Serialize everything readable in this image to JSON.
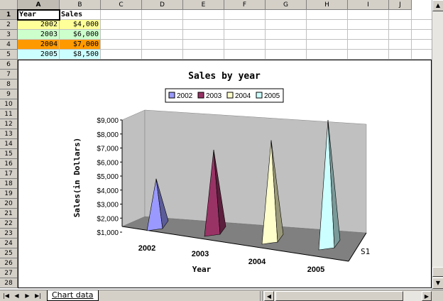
{
  "columns": [
    "A",
    "B",
    "C",
    "D",
    "E",
    "F",
    "G",
    "H",
    "I",
    "J"
  ],
  "rows": [
    "1",
    "2",
    "3",
    "4",
    "5",
    "6",
    "7",
    "8",
    "9",
    "10",
    "11",
    "12",
    "13",
    "14",
    "15",
    "16",
    "17",
    "18",
    "19",
    "20",
    "21",
    "22",
    "23",
    "24",
    "25",
    "26",
    "27",
    "28"
  ],
  "table": {
    "headers": [
      "Year",
      "Sales"
    ],
    "rows": [
      {
        "year": "2002",
        "sales": "$4,000",
        "fill": "#ffff99"
      },
      {
        "year": "2003",
        "sales": "$6,000",
        "fill": "#ccffcc"
      },
      {
        "year": "2004",
        "sales": "$7,000",
        "fill": "#ff9900"
      },
      {
        "year": "2005",
        "sales": "$8,500",
        "fill": "#ccffff"
      }
    ]
  },
  "chart_data": {
    "type": "bar",
    "style": "3d-pyramid",
    "title": "Sales by year",
    "ylabel": "Sales(in Dollars)",
    "xlabel": "Year",
    "zlabel": "S1",
    "categories": [
      "2002",
      "2003",
      "2004",
      "2005"
    ],
    "values": [
      4000,
      6000,
      7000,
      8500
    ],
    "colors": [
      "#9999ff",
      "#993366",
      "#ffffcc",
      "#ccffff"
    ],
    "legend": [
      "2002",
      "2003",
      "2004",
      "2005"
    ],
    "legend_position": "top",
    "yticks": [
      "$1,000",
      "$2,000",
      "$3,000",
      "$4,000",
      "$5,000",
      "$6,000",
      "$7,000",
      "$8,000",
      "$9,000"
    ],
    "ylim": [
      1000,
      9000
    ],
    "grid": false,
    "wall_color": "#c0c0c0",
    "floor_color": "#808080"
  },
  "tabs": {
    "sheet_name": "Chart data",
    "nav": [
      "first-sheet",
      "prev-sheet",
      "next-sheet",
      "last-sheet"
    ]
  }
}
